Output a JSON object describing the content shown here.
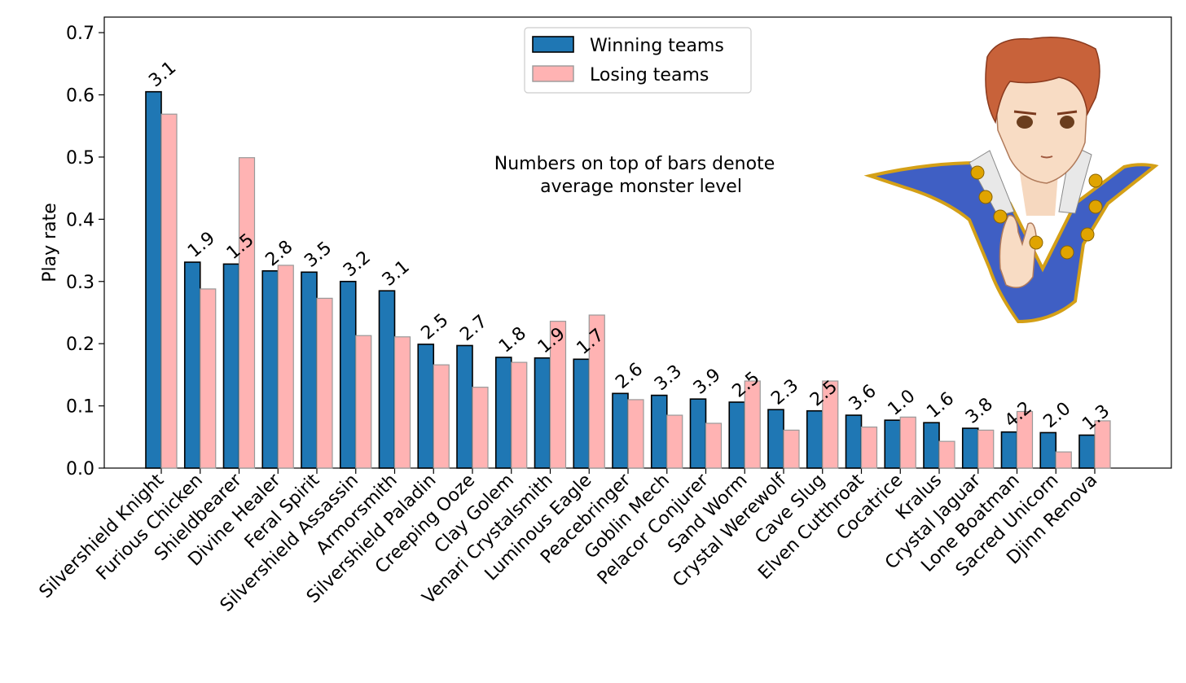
{
  "chart_data": {
    "type": "bar",
    "title": "",
    "xlabel": "",
    "ylabel": "Play rate",
    "ylim": [
      0,
      0.725
    ],
    "yticks": [
      "0.0",
      "0.1",
      "0.2",
      "0.3",
      "0.4",
      "0.5",
      "0.6",
      "0.7"
    ],
    "grid": false,
    "legend_position": "top-center",
    "annotation": [
      "Numbers on top of bars denote",
      "average monster level"
    ],
    "categories": [
      "Silvershield Knight",
      "Furious Chicken",
      "Shieldbearer",
      "Divine Healer",
      "Feral Spirit",
      "Silvershield Assassin",
      "Armorsmith",
      "Silvershield Paladin",
      "Creeping Ooze",
      "Clay Golem",
      "Venari Crystalsmith",
      "Luminous Eagle",
      "Peacebringer",
      "Goblin Mech",
      "Pelacor Conjurer",
      "Sand Worm",
      "Crystal Werewolf",
      "Cave Slug",
      "Elven Cutthroat",
      "Cocatrice",
      "Kralus",
      "Crystal Jaguar",
      "Lone Boatman",
      "Sacred Unicorn",
      "Djinn Renova"
    ],
    "series": [
      {
        "name": "Winning teams",
        "color": "#1f77b4",
        "values": [
          0.605,
          0.331,
          0.328,
          0.317,
          0.315,
          0.3,
          0.285,
          0.199,
          0.197,
          0.178,
          0.177,
          0.175,
          0.12,
          0.117,
          0.111,
          0.106,
          0.094,
          0.092,
          0.085,
          0.077,
          0.073,
          0.064,
          0.058,
          0.057,
          0.053
        ],
        "labels": [
          "3.1",
          "1.9",
          "1.5",
          "2.8",
          "3.5",
          "3.2",
          "3.1",
          "2.5",
          "2.7",
          "1.8",
          "1.9",
          "1.7",
          "2.6",
          "3.3",
          "3.9",
          "2.5",
          "2.3",
          "2.5",
          "3.6",
          "1.0",
          "1.6",
          "3.8",
          "4.2",
          "2.0",
          "1.3"
        ]
      },
      {
        "name": "Losing teams",
        "color": "#ffb3b3",
        "values": [
          0.569,
          0.288,
          0.499,
          0.326,
          0.273,
          0.213,
          0.211,
          0.166,
          0.13,
          0.17,
          0.236,
          0.246,
          0.11,
          0.085,
          0.072,
          0.14,
          0.061,
          0.14,
          0.066,
          0.082,
          0.043,
          0.061,
          0.091,
          0.026,
          0.076
        ]
      }
    ],
    "illustration": "anime-character-portrait"
  }
}
